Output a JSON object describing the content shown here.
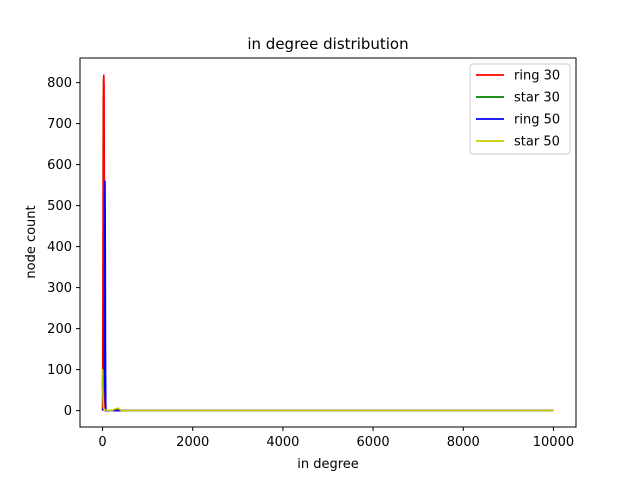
{
  "chart_data": {
    "type": "line",
    "title": "in degree distribution",
    "xlabel": "in degree",
    "ylabel": "node count",
    "xlim": [
      -500,
      10500
    ],
    "ylim": [
      -40,
      860
    ],
    "xticks": [
      0,
      2000,
      4000,
      6000,
      8000,
      10000
    ],
    "yticks": [
      0,
      100,
      200,
      300,
      400,
      500,
      600,
      700,
      800
    ],
    "legend_position": "top-right",
    "grid": false,
    "series": [
      {
        "name": "ring 30",
        "color": "#ff0000",
        "x": [
          0,
          8,
          16,
          22,
          28,
          34,
          38,
          44,
          50,
          56,
          62,
          100,
          1000,
          5000,
          10000
        ],
        "y": [
          0,
          320,
          760,
          810,
          818,
          790,
          600,
          240,
          60,
          5,
          0,
          0,
          0,
          0,
          0
        ]
      },
      {
        "name": "star 30",
        "color": "#008000",
        "x": [
          0,
          5,
          15,
          30,
          60,
          100,
          200,
          300,
          350,
          400,
          1000,
          5000,
          7200,
          8000,
          10000
        ],
        "y": [
          60,
          90,
          20,
          5,
          2,
          1,
          0,
          3,
          4,
          0,
          0,
          0,
          0,
          0,
          0
        ]
      },
      {
        "name": "ring 50",
        "color": "#0000ff",
        "x": [
          0,
          20,
          35,
          45,
          50,
          55,
          60,
          66,
          72,
          80,
          100,
          1000,
          5000,
          10000
        ],
        "y": [
          0,
          5,
          60,
          300,
          520,
          560,
          420,
          120,
          10,
          0,
          0,
          0,
          0,
          0
        ]
      },
      {
        "name": "star 50",
        "color": "#cccc00",
        "x": [
          0,
          4,
          10,
          20,
          30,
          60,
          100,
          200,
          300,
          350,
          380,
          420,
          1000,
          5000,
          10000
        ],
        "y": [
          80,
          100,
          40,
          10,
          4,
          2,
          1,
          0,
          5,
          6,
          3,
          0,
          0,
          0,
          0
        ]
      }
    ]
  }
}
